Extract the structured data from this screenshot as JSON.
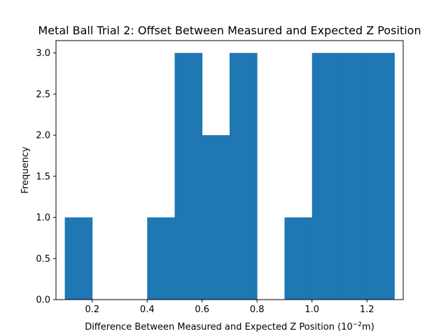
{
  "chart_data": {
    "type": "bar",
    "title": "Metal Ball Trial 2: Offset Between Measured and Expected Z Position",
    "xlabel_prefix": "Difference Between Measured and Expected Z Position (10",
    "xlabel_exponent": "−2",
    "xlabel_suffix": "m)",
    "ylabel": "Frequency",
    "bin_edges": [
      0.1,
      0.2,
      0.3,
      0.4,
      0.5,
      0.6,
      0.7,
      0.8,
      0.9,
      1.0,
      1.1,
      1.2,
      1.3
    ],
    "values": [
      1,
      0,
      0,
      1,
      3,
      2,
      3,
      0,
      1,
      3,
      3,
      3
    ],
    "xlim": [
      0.068,
      1.332
    ],
    "ylim": [
      0,
      3.15
    ],
    "xticks": [
      0.2,
      0.4,
      0.6,
      0.8,
      1.0,
      1.2
    ],
    "xtick_labels": [
      "0.2",
      "0.4",
      "0.6",
      "0.8",
      "1.0",
      "1.2"
    ],
    "yticks": [
      0.0,
      0.5,
      1.0,
      1.5,
      2.0,
      2.5,
      3.0
    ],
    "ytick_labels": [
      "0.0",
      "0.5",
      "1.0",
      "1.5",
      "2.0",
      "2.5",
      "3.0"
    ],
    "bar_color": "#1f77b4",
    "grid": false,
    "legend": "none"
  }
}
